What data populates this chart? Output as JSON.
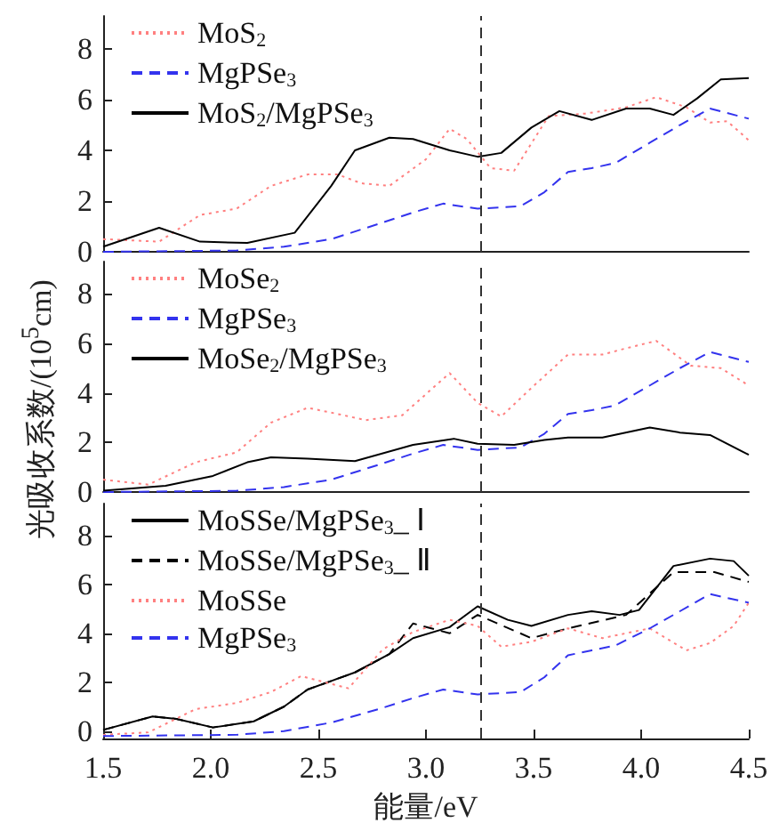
{
  "chart_data": [
    {
      "type": "line",
      "xlim": [
        1.5,
        4.5
      ],
      "ylim": [
        0,
        9.3
      ],
      "yticks": [
        0,
        2,
        4,
        6,
        8
      ],
      "tick_labels": "y",
      "legend": "top left",
      "grid": false,
      "marker": "none",
      "ref_lines": [
        {
          "axis": "x",
          "value": 3.25,
          "color": "#333333",
          "line_style": "dashed"
        }
      ],
      "series": [
        {
          "name": "MoS$_{2}$",
          "color": "#ff8080",
          "line_style": "dotted",
          "x": [
            1.5,
            1.76,
            1.95,
            2.12,
            2.28,
            2.45,
            2.59,
            2.7,
            2.83,
            3.0,
            3.11,
            3.19,
            3.3,
            3.41,
            3.57,
            3.74,
            3.93,
            4.07,
            4.21,
            4.32,
            4.4,
            4.5
          ],
          "values": [
            0.5,
            0.4,
            1.45,
            1.7,
            2.6,
            3.05,
            3.05,
            2.7,
            2.6,
            3.65,
            4.85,
            4.45,
            3.3,
            3.2,
            5.35,
            5.45,
            5.7,
            6.1,
            5.7,
            5.1,
            5.15,
            4.4
          ]
        },
        {
          "name": "MgPSe$_{3}$",
          "color": "#3333ee",
          "line_style": "dashed",
          "x": [
            1.5,
            2.12,
            2.34,
            2.56,
            2.78,
            2.94,
            3.08,
            3.24,
            3.44,
            3.55,
            3.66,
            3.77,
            3.88,
            4.04,
            4.18,
            4.32,
            4.5
          ],
          "values": [
            0,
            0.05,
            0.2,
            0.5,
            1.1,
            1.55,
            1.9,
            1.7,
            1.8,
            2.35,
            3.15,
            3.3,
            3.5,
            4.3,
            5.0,
            5.65,
            5.25
          ]
        },
        {
          "name": "MoS$_{2}$/MgPSe$_{3}$",
          "color": "#000000",
          "line_style": "solid",
          "x": [
            1.5,
            1.76,
            1.95,
            2.17,
            2.39,
            2.56,
            2.67,
            2.83,
            2.94,
            3.11,
            3.24,
            3.35,
            3.49,
            3.62,
            3.77,
            3.93,
            4.04,
            4.15,
            4.26,
            4.37,
            4.5
          ],
          "values": [
            0.2,
            0.95,
            0.4,
            0.35,
            0.75,
            2.6,
            4.0,
            4.5,
            4.45,
            4.0,
            3.75,
            3.9,
            4.9,
            5.55,
            5.2,
            5.65,
            5.65,
            5.4,
            6.05,
            6.8,
            6.85
          ]
        }
      ]
    },
    {
      "type": "line",
      "xlim": [
        1.5,
        4.5
      ],
      "ylim": [
        0,
        9.3
      ],
      "yticks": [
        0,
        2,
        4,
        6,
        8
      ],
      "tick_labels": "y",
      "legend": "top left",
      "grid": false,
      "marker": "none",
      "ylabel": "光吸收系数/(10$^{5}$cm)",
      "ref_lines": [
        {
          "axis": "x",
          "value": 3.25,
          "color": "#333333",
          "line_style": "dashed"
        }
      ],
      "series": [
        {
          "name": "MoSe$_{2}$",
          "color": "#ff8080",
          "line_style": "dotted",
          "x": [
            1.5,
            1.71,
            1.93,
            2.12,
            2.28,
            2.45,
            2.59,
            2.72,
            2.89,
            3.11,
            3.24,
            3.35,
            3.49,
            3.66,
            3.82,
            3.93,
            4.07,
            4.23,
            4.37,
            4.5
          ],
          "values": [
            0.5,
            0.3,
            1.2,
            1.6,
            2.8,
            3.4,
            3.15,
            2.9,
            3.1,
            4.8,
            3.6,
            3.05,
            4.2,
            5.55,
            5.55,
            5.8,
            6.1,
            5.1,
            5.0,
            4.3
          ]
        },
        {
          "name": "MgPSe$_{3}$",
          "color": "#3333ee",
          "line_style": "dashed",
          "x": [
            1.5,
            2.12,
            2.34,
            2.56,
            2.78,
            2.94,
            3.08,
            3.24,
            3.44,
            3.55,
            3.66,
            3.77,
            3.88,
            4.04,
            4.18,
            4.32,
            4.5
          ],
          "values": [
            0,
            0.05,
            0.2,
            0.5,
            1.1,
            1.55,
            1.9,
            1.7,
            1.8,
            2.35,
            3.15,
            3.3,
            3.5,
            4.3,
            5.0,
            5.65,
            5.25
          ]
        },
        {
          "name": "MoSe$_{2}$/MgPSe$_{3}$",
          "color": "#000000",
          "line_style": "solid",
          "x": [
            1.5,
            1.79,
            2.01,
            2.17,
            2.28,
            2.45,
            2.67,
            2.94,
            3.13,
            3.24,
            3.41,
            3.55,
            3.66,
            3.82,
            4.04,
            4.18,
            4.32,
            4.5
          ],
          "values": [
            0.05,
            0.25,
            0.65,
            1.2,
            1.4,
            1.35,
            1.25,
            1.9,
            2.15,
            1.95,
            1.9,
            2.1,
            2.2,
            2.2,
            2.6,
            2.4,
            2.3,
            1.5
          ]
        }
      ]
    },
    {
      "type": "line",
      "xlim": [
        1.5,
        4.5
      ],
      "ylim": [
        -0.3,
        9.3
      ],
      "xticks": [
        {
          "value": 1.5,
          "label": "1.5"
        },
        {
          "value": 2,
          "label": "2.0"
        },
        {
          "value": 2.5,
          "label": "2.5"
        },
        {
          "value": 3,
          "label": "3.0"
        },
        {
          "value": 3.5,
          "label": "3.5"
        },
        {
          "value": 4,
          "label": "4.0"
        },
        {
          "value": 4.5,
          "label": "4.5"
        }
      ],
      "yticks": [
        0,
        2,
        4,
        6,
        8
      ],
      "legend": "top left",
      "grid": false,
      "marker": "none",
      "xlabel": "能量/eV",
      "ref_lines": [
        {
          "axis": "x",
          "value": 3.25,
          "color": "#333333",
          "line_style": "dashed"
        }
      ],
      "series": [
        {
          "name": "MoSSe/MgPSe$_{3}$_ Ⅰ",
          "color": "#000000",
          "line_style": "solid",
          "x": [
            1.5,
            1.73,
            1.84,
            2.01,
            2.2,
            2.34,
            2.45,
            2.56,
            2.67,
            2.83,
            2.94,
            3.11,
            3.24,
            3.38,
            3.49,
            3.66,
            3.77,
            3.9,
            3.99,
            4.15,
            4.32,
            4.43,
            4.5
          ],
          "values": [
            0.05,
            0.6,
            0.5,
            0.15,
            0.4,
            1.0,
            1.7,
            2.05,
            2.4,
            3.15,
            3.8,
            4.25,
            5.1,
            4.55,
            4.3,
            4.75,
            4.9,
            4.75,
            4.95,
            6.75,
            7.05,
            6.95,
            6.35
          ]
        },
        {
          "name": "MoSSe/MgPSe$_{3}$_ Ⅱ",
          "color": "#000000",
          "line_style": "dashed",
          "x": [
            1.5,
            1.73,
            1.84,
            2.01,
            2.2,
            2.34,
            2.45,
            2.56,
            2.67,
            2.83,
            2.94,
            3.11,
            3.24,
            3.49,
            3.66,
            3.93,
            4.15,
            4.34,
            4.5
          ],
          "values": [
            0.05,
            0.6,
            0.5,
            0.15,
            0.4,
            1.0,
            1.7,
            2.05,
            2.4,
            3.15,
            4.4,
            4.0,
            4.75,
            3.8,
            4.2,
            4.75,
            6.5,
            6.5,
            6.1
          ]
        },
        {
          "name": "MoSSe",
          "color": "#ff8080",
          "line_style": "dotted",
          "x": [
            1.5,
            1.71,
            1.93,
            2.12,
            2.28,
            2.42,
            2.64,
            2.8,
            2.94,
            3.11,
            3.24,
            3.35,
            3.49,
            3.66,
            3.82,
            4.04,
            4.21,
            4.32,
            4.43,
            4.5
          ],
          "values": [
            -0.15,
            -0.05,
            0.9,
            1.15,
            1.6,
            2.25,
            1.75,
            3.35,
            4.05,
            4.55,
            4.3,
            3.45,
            3.65,
            4.2,
            3.8,
            4.2,
            3.3,
            3.6,
            4.3,
            5.25
          ]
        },
        {
          "name": "MgPSe$_{3}$",
          "color": "#3333ee",
          "line_style": "dashed",
          "x": [
            1.5,
            2.12,
            2.34,
            2.56,
            2.78,
            2.94,
            3.08,
            3.24,
            3.44,
            3.55,
            3.66,
            3.77,
            3.88,
            4.04,
            4.18,
            4.32,
            4.5
          ],
          "values": [
            -0.2,
            -0.15,
            0.0,
            0.35,
            0.9,
            1.35,
            1.7,
            1.5,
            1.6,
            2.2,
            3.1,
            3.3,
            3.5,
            4.2,
            4.9,
            5.6,
            5.25
          ]
        }
      ]
    }
  ]
}
